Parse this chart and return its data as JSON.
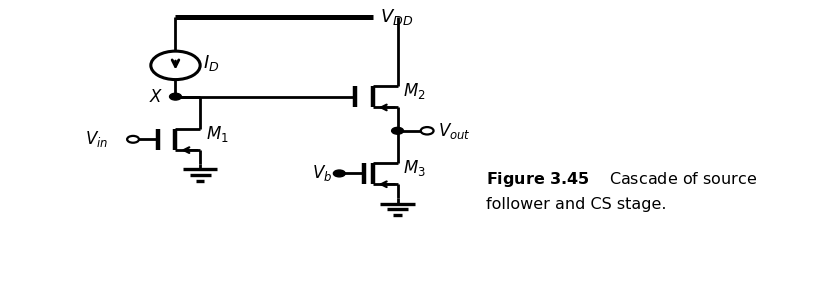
{
  "fig_width": 8.2,
  "fig_height": 2.9,
  "dpi": 100,
  "bg_color": "#ffffff",
  "line_color": "#000000",
  "lw": 2.0,
  "title_bold": "Figure 3.45",
  "caption_line1": "   Cascade of source",
  "caption_line2": "follower and CS stage.",
  "caption_fontsize": 11.5
}
